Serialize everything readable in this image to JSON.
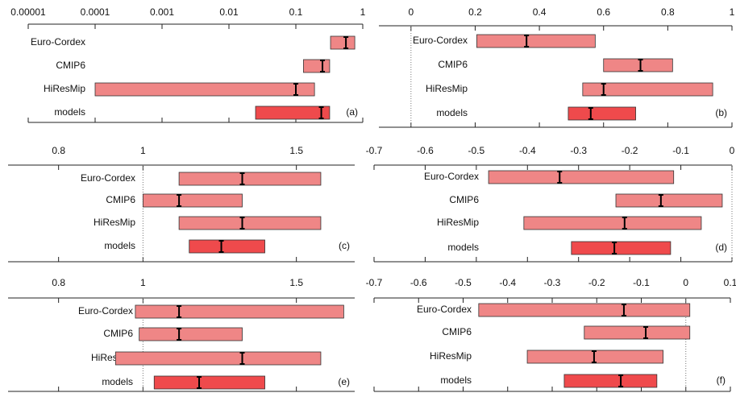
{
  "chart_data": [
    {
      "type": "range",
      "label": "(a)",
      "xscale": "log",
      "xlim": [
        1e-05,
        1
      ],
      "xticks": [
        1e-05,
        0.0001,
        0.001,
        0.01,
        0.1,
        1
      ],
      "categories": [
        "Euro-Cordex",
        "CMIP6",
        "HiResMip",
        "models"
      ],
      "low": [
        0.33,
        0.13,
        0.0001,
        0.025
      ],
      "high": [
        0.76,
        0.32,
        0.19,
        0.32
      ],
      "median": [
        0.56,
        0.25,
        0.1,
        0.24
      ],
      "colors": [
        "#ef8686",
        "#ef8686",
        "#ef8686",
        "#ef4a4c"
      ]
    },
    {
      "type": "range",
      "label": "(b)",
      "xscale": "linear",
      "xlim": [
        -0.1,
        1
      ],
      "xticks": [
        0,
        0.2,
        0.4,
        0.6,
        0.8,
        1
      ],
      "reference_line": 0,
      "categories": [
        "Euro-Cordex",
        "CMIP6",
        "HiResMip",
        "models"
      ],
      "low": [
        0.205,
        0.6,
        0.535,
        0.49
      ],
      "high": [
        0.574,
        0.815,
        0.94,
        0.7
      ],
      "median": [
        0.36,
        0.715,
        0.6,
        0.56
      ],
      "colors": [
        "#ef8686",
        "#ef8686",
        "#ef8686",
        "#ef4a4c"
      ]
    },
    {
      "type": "range",
      "label": "(c)",
      "xscale": "log",
      "xlim": [
        0.7,
        1.75
      ],
      "xticks": [
        0.8,
        1,
        1.5
      ],
      "reference_line": 1,
      "categories": [
        "Euro-Cordex",
        "CMIP6",
        "HiResMip",
        "models"
      ],
      "low": [
        1.1,
        1.0,
        1.1,
        1.13
      ],
      "high": [
        1.6,
        1.3,
        1.6,
        1.38
      ],
      "median": [
        1.3,
        1.1,
        1.3,
        1.23
      ],
      "colors": [
        "#ef8686",
        "#ef8686",
        "#ef8686",
        "#ef4a4c"
      ]
    },
    {
      "type": "range",
      "label": "(d)",
      "xscale": "linear",
      "xlim": [
        -0.7,
        0
      ],
      "xticks": [
        -0.7,
        -0.6,
        -0.5,
        -0.4,
        -0.3,
        -0.2,
        -0.1,
        0
      ],
      "reference_line": 0,
      "categories": [
        "Euro-Cordex",
        "CMIP6",
        "HiResMip",
        "models"
      ],
      "low": [
        -0.476,
        -0.227,
        -0.407,
        -0.314
      ],
      "high": [
        -0.114,
        -0.019,
        -0.06,
        -0.12
      ],
      "median": [
        -0.337,
        -0.139,
        -0.21,
        -0.23
      ],
      "colors": [
        "#ef8686",
        "#ef8686",
        "#ef8686",
        "#ef4a4c"
      ]
    },
    {
      "type": "range",
      "label": "(e)",
      "xscale": "log",
      "xlim": [
        0.7,
        1.75
      ],
      "xticks": [
        0.8,
        1,
        1.5
      ],
      "reference_line": 1,
      "categories": [
        "Euro-Cordex",
        "CMIP6",
        "HiResMip",
        "models"
      ],
      "low": [
        0.98,
        0.99,
        0.93,
        1.03
      ],
      "high": [
        1.7,
        1.3,
        1.6,
        1.38
      ],
      "median": [
        1.1,
        1.1,
        1.3,
        1.16
      ],
      "colors": [
        "#ef8686",
        "#ef8686",
        "#ef8686",
        "#ef4a4c"
      ]
    },
    {
      "type": "range",
      "label": "(f)",
      "xscale": "linear",
      "xlim": [
        -0.7,
        0.1
      ],
      "xticks": [
        -0.7,
        -0.6,
        -0.5,
        -0.4,
        -0.3,
        -0.2,
        -0.1,
        0,
        0.1
      ],
      "reference_line": 0,
      "categories": [
        "Euro-Cordex",
        "CMIP6",
        "HiResMip",
        "models"
      ],
      "low": [
        -0.465,
        -0.228,
        -0.356,
        -0.273
      ],
      "high": [
        0.009,
        0.009,
        -0.051,
        -0.065
      ],
      "median": [
        -0.139,
        -0.09,
        -0.206,
        -0.146
      ],
      "colors": [
        "#ef8686",
        "#ef8686",
        "#ef8686",
        "#ef4a4c"
      ]
    }
  ]
}
